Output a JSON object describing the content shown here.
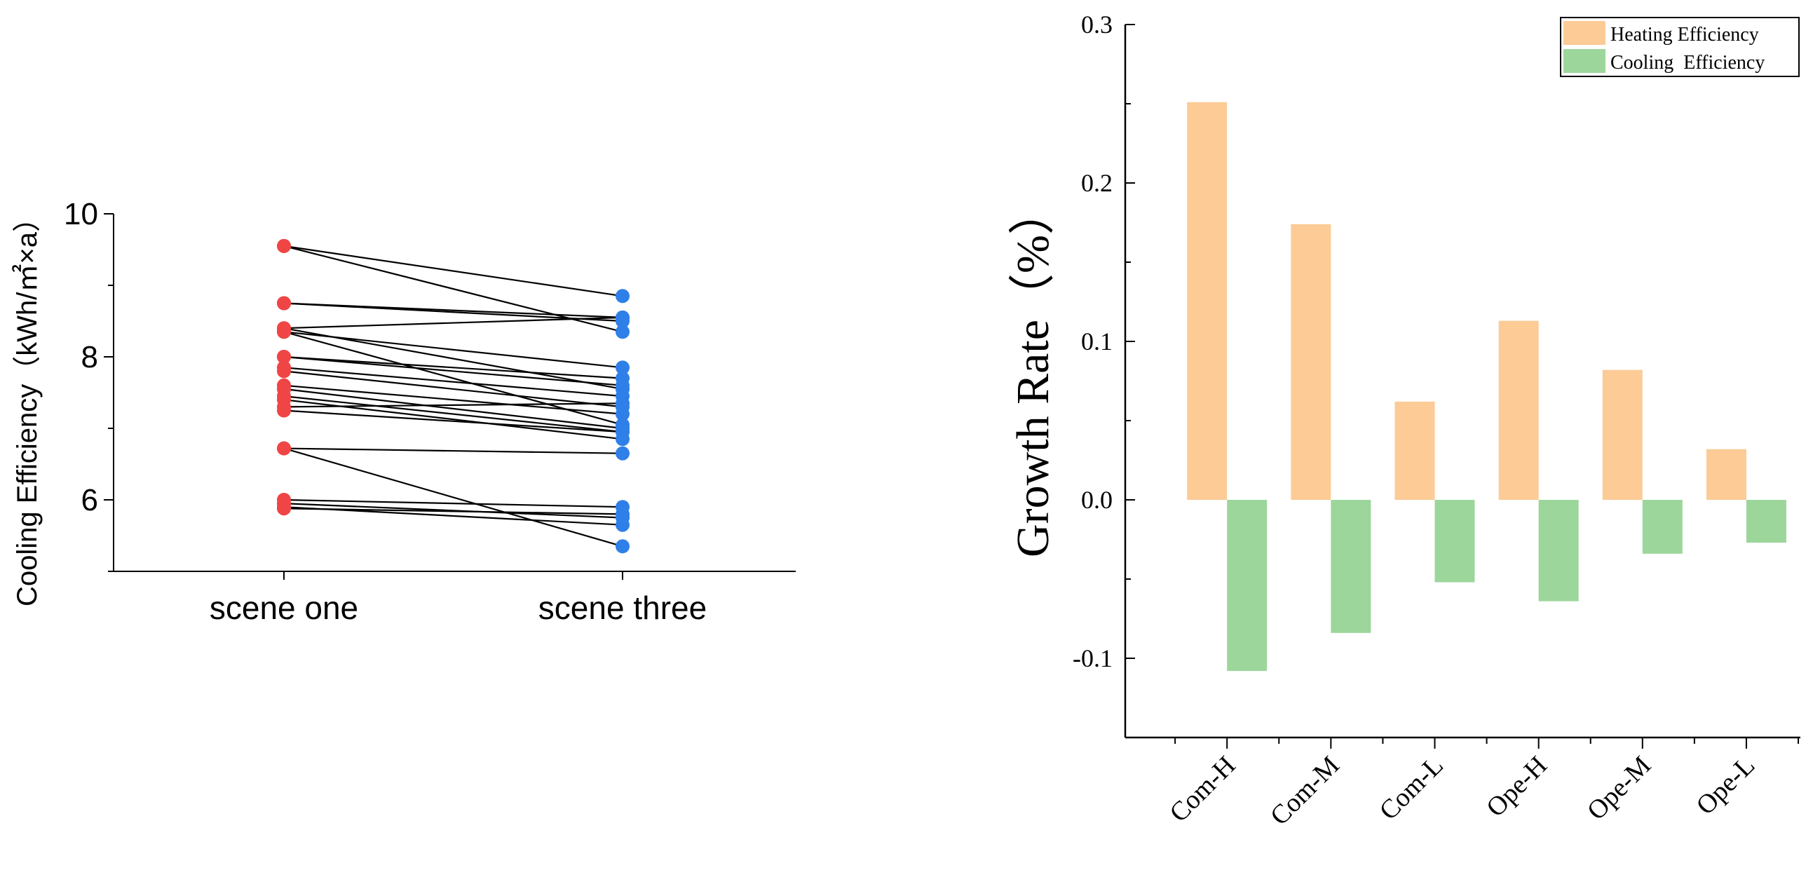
{
  "chart_data": [
    {
      "type": "line",
      "subtype": "paired-slope",
      "ylabel": "Cooling Efficiency（kWh/㎡×a）",
      "xlabel": "",
      "categories": [
        "scene one",
        "scene three"
      ],
      "ylim": [
        5,
        10
      ],
      "yticks": [
        6,
        8,
        10
      ],
      "ytick_labels": [
        "6",
        "8",
        "10"
      ],
      "colors": {
        "scene_one": "#f04545",
        "scene_three": "#2f7fe8",
        "line": "#000000"
      },
      "pairs": [
        [
          9.55,
          8.85
        ],
        [
          9.55,
          8.35
        ],
        [
          8.75,
          8.55
        ],
        [
          8.75,
          8.5
        ],
        [
          8.4,
          8.55
        ],
        [
          8.4,
          7.55
        ],
        [
          8.35,
          7.05
        ],
        [
          8.35,
          7.85
        ],
        [
          8.0,
          7.7
        ],
        [
          8.0,
          7.6
        ],
        [
          7.85,
          7.45
        ],
        [
          7.8,
          7.3
        ],
        [
          7.6,
          7.2
        ],
        [
          7.55,
          7.0
        ],
        [
          7.45,
          6.95
        ],
        [
          7.4,
          6.85
        ],
        [
          7.3,
          7.35
        ],
        [
          7.25,
          6.95
        ],
        [
          6.72,
          6.65
        ],
        [
          6.72,
          5.35
        ],
        [
          6.0,
          5.9
        ],
        [
          5.95,
          5.75
        ],
        [
          5.9,
          5.65
        ],
        [
          5.88,
          5.8
        ]
      ]
    },
    {
      "type": "bar",
      "ylabel": "Growth Rate（%）",
      "xlabel": "",
      "categories": [
        "Com-H",
        "Com-M",
        "Com-L",
        "Ope-H",
        "Ope-M",
        "Ope-L"
      ],
      "ylim": [
        -0.15,
        0.3
      ],
      "yticks": [
        -0.1,
        0.0,
        0.1,
        0.2,
        0.3
      ],
      "ytick_labels": [
        "-0.1",
        "0.0",
        "0.1",
        "0.2",
        "0.3"
      ],
      "legend_position": "top-right",
      "series": [
        {
          "name": "Heating Efficiency",
          "color": "#fccb96",
          "values": [
            0.251,
            0.174,
            0.062,
            0.113,
            0.082,
            0.032
          ]
        },
        {
          "name": "Cooling  Efficiency",
          "color": "#9cd69b",
          "values": [
            -0.108,
            -0.084,
            -0.052,
            -0.064,
            -0.034,
            -0.027
          ]
        }
      ]
    }
  ]
}
